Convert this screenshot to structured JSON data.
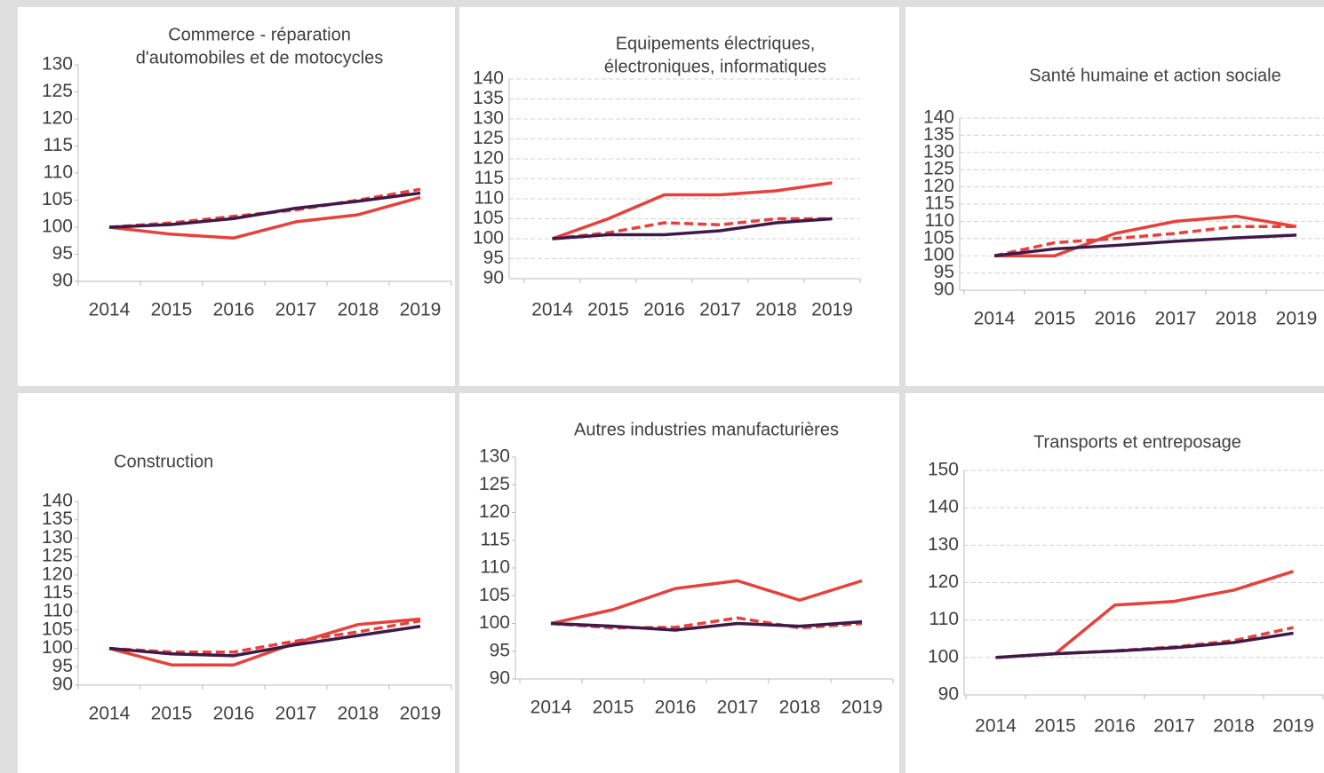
{
  "chart_data": [
    {
      "type": "line",
      "title": [
        "Commerce -  réparation",
        "d'automobiles et de motocycles"
      ],
      "categories": [
        "2014",
        "2015",
        "2016",
        "2017",
        "2018",
        "2019"
      ],
      "ylim": [
        90,
        130
      ],
      "yticks": [
        90,
        95,
        100,
        105,
        110,
        115,
        120,
        125,
        130
      ],
      "grid": false,
      "series": [
        {
          "color": "#e8403a",
          "dashed": false,
          "values": [
            100,
            98.7,
            98,
            101,
            102.3,
            105.5
          ]
        },
        {
          "color": "#e8403a",
          "dashed": true,
          "values": [
            100,
            100.8,
            102,
            103.2,
            105,
            107
          ]
        },
        {
          "color": "#3d1a4a",
          "dashed": false,
          "values": [
            100,
            100.5,
            101.6,
            103.5,
            104.8,
            106.3
          ]
        }
      ]
    },
    {
      "type": "line",
      "title": [
        "Equipements électriques,",
        "électroniques, informatiques"
      ],
      "categories": [
        "2014",
        "2015",
        "2016",
        "2017",
        "2018",
        "2019"
      ],
      "ylim": [
        90,
        140
      ],
      "yticks": [
        90,
        95,
        100,
        105,
        110,
        115,
        120,
        125,
        130,
        135,
        140
      ],
      "grid": true,
      "series": [
        {
          "color": "#e8403a",
          "dashed": false,
          "values": [
            100,
            105,
            111,
            111,
            112,
            114
          ]
        },
        {
          "color": "#e8403a",
          "dashed": true,
          "values": [
            100,
            101.5,
            104,
            103.5,
            105,
            105
          ]
        },
        {
          "color": "#3d1a4a",
          "dashed": false,
          "values": [
            100,
            101,
            101,
            102,
            104,
            105
          ]
        }
      ]
    },
    {
      "type": "line",
      "title": [
        "Santé humaine et action sociale"
      ],
      "categories": [
        "2014",
        "2015",
        "2016",
        "2017",
        "2018",
        "2019"
      ],
      "ylim": [
        90,
        140
      ],
      "yticks": [
        90,
        95,
        100,
        105,
        110,
        115,
        120,
        125,
        130,
        135,
        140
      ],
      "grid": true,
      "series": [
        {
          "color": "#e8403a",
          "dashed": false,
          "values": [
            100,
            100,
            106.5,
            110,
            111.5,
            108.5
          ]
        },
        {
          "color": "#e8403a",
          "dashed": true,
          "values": [
            100,
            103.8,
            105,
            106.5,
            108.5,
            108.5
          ]
        },
        {
          "color": "#3d1a4a",
          "dashed": false,
          "values": [
            100,
            102,
            103,
            104.2,
            105.2,
            106
          ]
        }
      ]
    },
    {
      "type": "line",
      "title": [
        "Construction"
      ],
      "categories": [
        "2014",
        "2015",
        "2016",
        "2017",
        "2018",
        "2019"
      ],
      "ylim": [
        90,
        140
      ],
      "yticks": [
        90,
        95,
        100,
        105,
        110,
        115,
        120,
        125,
        130,
        135,
        140
      ],
      "grid": false,
      "series": [
        {
          "color": "#e8403a",
          "dashed": false,
          "values": [
            100,
            95.5,
            95.5,
            101.5,
            106.5,
            108
          ]
        },
        {
          "color": "#e8403a",
          "dashed": true,
          "values": [
            100,
            99,
            99,
            102,
            104.5,
            107.5
          ]
        },
        {
          "color": "#3d1a4a",
          "dashed": false,
          "values": [
            100,
            98.5,
            98,
            101,
            103.5,
            106
          ]
        }
      ]
    },
    {
      "type": "line",
      "title": [
        "Autres industries manufacturières"
      ],
      "categories": [
        "2014",
        "2015",
        "2016",
        "2017",
        "2018",
        "2019"
      ],
      "ylim": [
        90,
        130
      ],
      "yticks": [
        90,
        95,
        100,
        105,
        110,
        115,
        120,
        125,
        130
      ],
      "grid": false,
      "series": [
        {
          "color": "#e8403a",
          "dashed": false,
          "values": [
            100,
            102.5,
            106.3,
            107.7,
            104.2,
            107.7
          ]
        },
        {
          "color": "#e8403a",
          "dashed": true,
          "values": [
            100,
            99.2,
            99.3,
            101,
            99.2,
            100
          ]
        },
        {
          "color": "#3d1a4a",
          "dashed": false,
          "values": [
            100,
            99.5,
            98.8,
            100,
            99.5,
            100.3
          ]
        }
      ]
    },
    {
      "type": "line",
      "title": [
        "Transports et entreposage"
      ],
      "categories": [
        "2014",
        "2015",
        "2016",
        "2017",
        "2018",
        "2019"
      ],
      "ylim": [
        90,
        150
      ],
      "yticks": [
        90,
        100,
        110,
        120,
        130,
        140,
        150
      ],
      "grid": true,
      "series": [
        {
          "color": "#e8403a",
          "dashed": false,
          "values": [
            100,
            101,
            114,
            115,
            118,
            123
          ]
        },
        {
          "color": "#e8403a",
          "dashed": true,
          "values": [
            100,
            101,
            101.8,
            102.8,
            104.5,
            108
          ]
        },
        {
          "color": "#3d1a4a",
          "dashed": false,
          "values": [
            100,
            101,
            101.7,
            102.6,
            104,
            106.5
          ]
        }
      ]
    }
  ]
}
